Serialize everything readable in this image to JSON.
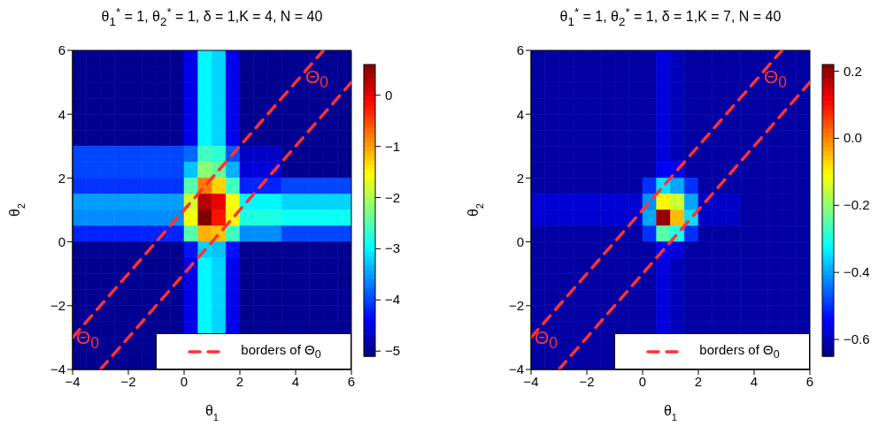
{
  "chart_data": [
    {
      "type": "heatmap",
      "title": "θ$_{1}$$^{*}$ = 1, θ$_{2}$$^{*}$ = 1, δ = 1,K = 4, N = 40",
      "xlabel": "θ$_{1}$",
      "ylabel": "θ$_{2}$",
      "xlim": [
        -4,
        6
      ],
      "xticks": [
        -4,
        -2,
        0,
        2,
        4,
        6
      ],
      "ylim": [
        -4,
        6
      ],
      "yticks": [
        -4,
        -2,
        0,
        2,
        4,
        6
      ],
      "clim": [
        -5.1,
        0.6
      ],
      "cticks": [
        -5,
        -4,
        -3,
        -2,
        -1,
        0
      ],
      "cells": [
        [
          -5,
          -5,
          -5,
          -5,
          -5,
          -5,
          -5,
          -5,
          -4.5,
          -3,
          -3.2,
          -4.5,
          -5,
          -5,
          -5,
          -5,
          -5,
          -5,
          -5,
          -5
        ],
        [
          -5,
          -5,
          -5,
          -5,
          -5,
          -5,
          -5,
          -5,
          -4.5,
          -3,
          -3.2,
          -4.5,
          -5,
          -5,
          -5,
          -5,
          -5,
          -5,
          -5,
          -5
        ],
        [
          -5,
          -5,
          -5,
          -5,
          -5,
          -5,
          -5,
          -5,
          -4.5,
          -3,
          -3.2,
          -4.5,
          -5,
          -5,
          -5,
          -5,
          -5,
          -5,
          -5,
          -5
        ],
        [
          -5,
          -5,
          -5,
          -5,
          -5,
          -5,
          -5,
          -5,
          -4.5,
          -3,
          -3.2,
          -4.5,
          -5,
          -5,
          -5,
          -5,
          -5,
          -5,
          -5,
          -5
        ],
        [
          -5,
          -5,
          -5,
          -5,
          -5,
          -5,
          -5,
          -5,
          -4.5,
          -3,
          -3.2,
          -4.5,
          -5,
          -5,
          -5,
          -5,
          -5,
          -5,
          -5,
          -5
        ],
        [
          -5,
          -5,
          -5,
          -5,
          -5,
          -5,
          -5,
          -5,
          -4.5,
          -3,
          -3.2,
          -4.5,
          -5,
          -5,
          -5,
          -5,
          -5,
          -5,
          -5,
          -5
        ],
        [
          -4,
          -4,
          -4,
          -4,
          -4,
          -4,
          -4,
          -4,
          -3.8,
          -2.6,
          -2.7,
          -3.9,
          -4.7,
          -4.7,
          -4.7,
          -5,
          -5,
          -5,
          -5,
          -5
        ],
        [
          -4,
          -4,
          -4,
          -4,
          -4,
          -4,
          -4,
          -4,
          -3.3,
          -2.2,
          -2.4,
          -3.4,
          -4.6,
          -4.6,
          -4.6,
          -5,
          -5,
          -5,
          -5,
          -5
        ],
        [
          -4.1,
          -4.1,
          -4.1,
          -4.1,
          -4.1,
          -4.1,
          -4.1,
          -4.1,
          -2.5,
          -0.8,
          -1.3,
          -2.6,
          -4.2,
          -4.2,
          -4.2,
          -4,
          -4,
          -4,
          -4,
          -4
        ],
        [
          -3.5,
          -3.5,
          -3.5,
          -3.5,
          -3.5,
          -3.5,
          -3.5,
          -3.5,
          -1.8,
          0.3,
          0,
          -1.6,
          -3,
          -3,
          -3,
          -3.2,
          -3.2,
          -3.2,
          -3.2,
          -3.2
        ],
        [
          -3.6,
          -3.6,
          -3.6,
          -3.6,
          -3.6,
          -3.6,
          -3.6,
          -3.6,
          -1.6,
          0.6,
          -0.2,
          -1.5,
          -2.8,
          -2.8,
          -2.8,
          -2.9,
          -2.9,
          -2.9,
          -2.9,
          -2.9
        ],
        [
          -4.2,
          -4.2,
          -4.2,
          -4.2,
          -4.2,
          -4.2,
          -4.2,
          -4.2,
          -2.5,
          -1.1,
          -1.2,
          -2.6,
          -3.6,
          -3.6,
          -3.6,
          -4,
          -4,
          -4,
          -4,
          -4
        ],
        [
          -5,
          -5,
          -5,
          -5,
          -5,
          -5,
          -5,
          -5,
          -4.3,
          -3.2,
          -3.3,
          -4.3,
          -5,
          -5,
          -5,
          -5,
          -5,
          -5,
          -5,
          -5
        ],
        [
          -5,
          -5,
          -5,
          -5,
          -5,
          -5,
          -5,
          -5,
          -4.5,
          -3,
          -3.2,
          -4.5,
          -5,
          -5,
          -5,
          -5,
          -5,
          -5,
          -5,
          -5
        ],
        [
          -5,
          -5,
          -5,
          -5,
          -5,
          -5,
          -5,
          -5,
          -4.5,
          -3,
          -3.2,
          -4.5,
          -5,
          -5,
          -5,
          -5,
          -5,
          -5,
          -5,
          -5
        ],
        [
          -5,
          -5,
          -5,
          -5,
          -5,
          -5,
          -5,
          -5,
          -4.5,
          -3,
          -3.2,
          -4.5,
          -5,
          -5,
          -5,
          -5,
          -5,
          -5,
          -5,
          -5
        ],
        [
          -5,
          -5,
          -5,
          -5,
          -5,
          -5,
          -5,
          -5,
          -4.5,
          -3,
          -3.2,
          -4.5,
          -5,
          -5,
          -5,
          -5,
          -5,
          -5,
          -5,
          -5
        ],
        [
          -5,
          -5,
          -5,
          -5,
          -5,
          -5,
          -5,
          -5,
          -4.5,
          -3,
          -3.2,
          -4.5,
          -5,
          -5,
          -5,
          -5,
          -5,
          -5,
          -5,
          -5
        ],
        [
          -5,
          -5,
          -5,
          -5,
          -5,
          -5,
          null,
          null,
          null,
          null,
          null,
          null,
          null,
          null,
          null,
          null,
          null,
          null,
          null,
          null
        ],
        [
          -5,
          -5,
          -5,
          -5,
          -5,
          -5,
          null,
          null,
          null,
          null,
          null,
          null,
          null,
          null,
          null,
          null,
          null,
          null,
          null,
          null
        ]
      ],
      "series": [
        {
          "type": "line",
          "name": "borders of Θ$_{0}$",
          "color": "#ff3333",
          "line_style": "dashed",
          "x": [
            -4,
            5
          ],
          "values": [
            -3,
            6
          ]
        },
        {
          "type": "line",
          "color": "#ff3333",
          "line_style": "dashed",
          "x": [
            -3,
            6
          ],
          "values": [
            -4,
            5
          ]
        }
      ],
      "legend": "bottom right",
      "annotations": [
        "Θ$_{0}$",
        "Θ$_{0}$"
      ]
    },
    {
      "type": "heatmap",
      "title": "θ$_{1}$$^{*}$ = 1, θ$_{2}$$^{*}$ = 1, δ = 1,K = 7, N = 40",
      "xlabel": "θ$_{1}$",
      "ylabel": "θ$_{2}$",
      "xlim": [
        -4,
        6
      ],
      "xticks": [
        -4,
        -2,
        0,
        2,
        4,
        6
      ],
      "ylim": [
        -4,
        6
      ],
      "yticks": [
        -4,
        -2,
        0,
        2,
        4,
        6
      ],
      "clim": [
        -0.65,
        0.22
      ],
      "cticks": [
        -0.6,
        -0.4,
        -0.2,
        {
          "value": 0,
          "label": "0.0"
        },
        0.2
      ],
      "cells": [
        [
          -0.62,
          -0.62,
          -0.62,
          -0.62,
          -0.62,
          -0.62,
          -0.62,
          -0.62,
          -0.62,
          -0.57,
          -0.6,
          -0.62,
          -0.62,
          -0.62,
          -0.62,
          -0.62,
          -0.62,
          -0.62,
          -0.62,
          -0.62
        ],
        [
          -0.62,
          -0.62,
          -0.62,
          -0.62,
          -0.62,
          -0.62,
          -0.62,
          -0.62,
          -0.62,
          -0.57,
          -0.6,
          -0.62,
          -0.62,
          -0.62,
          -0.62,
          -0.62,
          -0.62,
          -0.62,
          -0.62,
          -0.62
        ],
        [
          -0.62,
          -0.62,
          -0.62,
          -0.62,
          -0.62,
          -0.62,
          -0.62,
          -0.62,
          -0.62,
          -0.57,
          -0.6,
          -0.62,
          -0.62,
          -0.62,
          -0.62,
          -0.62,
          -0.62,
          -0.62,
          -0.62,
          -0.62
        ],
        [
          -0.62,
          -0.62,
          -0.62,
          -0.62,
          -0.62,
          -0.62,
          -0.62,
          -0.62,
          -0.62,
          -0.57,
          -0.6,
          -0.62,
          -0.62,
          -0.62,
          -0.62,
          -0.62,
          -0.62,
          -0.62,
          -0.62,
          -0.62
        ],
        [
          -0.62,
          -0.62,
          -0.62,
          -0.62,
          -0.62,
          -0.62,
          -0.62,
          -0.62,
          -0.62,
          -0.57,
          -0.6,
          -0.62,
          -0.62,
          -0.62,
          -0.62,
          -0.62,
          -0.62,
          -0.62,
          -0.62,
          -0.62
        ],
        [
          -0.62,
          -0.62,
          -0.62,
          -0.62,
          -0.62,
          -0.62,
          -0.62,
          -0.62,
          -0.62,
          -0.57,
          -0.6,
          -0.62,
          -0.62,
          -0.62,
          -0.62,
          -0.62,
          -0.62,
          -0.62,
          -0.62,
          -0.62
        ],
        [
          -0.62,
          -0.62,
          -0.62,
          -0.62,
          -0.62,
          -0.62,
          -0.62,
          -0.62,
          -0.62,
          -0.57,
          -0.6,
          -0.62,
          -0.62,
          -0.62,
          -0.62,
          -0.62,
          -0.62,
          -0.62,
          -0.62,
          -0.62
        ],
        [
          -0.62,
          -0.62,
          -0.62,
          -0.62,
          -0.62,
          -0.62,
          -0.62,
          -0.62,
          -0.62,
          -0.55,
          -0.55,
          -0.62,
          -0.62,
          -0.62,
          -0.62,
          -0.62,
          -0.62,
          -0.62,
          -0.62,
          -0.62
        ],
        [
          -0.62,
          -0.62,
          -0.62,
          -0.62,
          -0.62,
          -0.62,
          -0.62,
          -0.62,
          -0.5,
          -0.35,
          -0.4,
          -0.5,
          -0.62,
          -0.62,
          -0.62,
          -0.62,
          -0.62,
          -0.62,
          -0.62,
          -0.62
        ],
        [
          -0.58,
          -0.58,
          -0.58,
          -0.58,
          -0.58,
          -0.58,
          -0.58,
          -0.58,
          -0.42,
          -0.1,
          -0.15,
          -0.4,
          -0.59,
          -0.59,
          -0.59,
          -0.62,
          -0.62,
          -0.62,
          -0.62,
          -0.62
        ],
        [
          -0.58,
          -0.58,
          -0.58,
          -0.58,
          -0.58,
          -0.58,
          -0.58,
          -0.58,
          -0.4,
          0.2,
          -0.05,
          -0.35,
          -0.59,
          -0.59,
          -0.59,
          -0.62,
          -0.62,
          -0.62,
          -0.62,
          -0.62
        ],
        [
          -0.62,
          -0.62,
          -0.62,
          -0.62,
          -0.62,
          -0.62,
          -0.62,
          -0.62,
          -0.5,
          -0.25,
          -0.3,
          -0.5,
          -0.62,
          -0.62,
          -0.62,
          -0.62,
          -0.62,
          -0.62,
          -0.62,
          -0.62
        ],
        [
          -0.62,
          -0.62,
          -0.62,
          -0.62,
          -0.62,
          -0.62,
          -0.62,
          -0.62,
          -0.62,
          -0.55,
          -0.57,
          -0.62,
          -0.62,
          -0.62,
          -0.62,
          -0.62,
          -0.62,
          -0.62,
          -0.62,
          -0.62
        ],
        [
          -0.62,
          -0.62,
          -0.62,
          -0.62,
          -0.62,
          -0.62,
          -0.62,
          -0.62,
          -0.62,
          -0.57,
          -0.6,
          -0.62,
          -0.62,
          -0.62,
          -0.62,
          -0.62,
          -0.62,
          -0.62,
          -0.62,
          -0.62
        ],
        [
          -0.62,
          -0.62,
          -0.62,
          -0.62,
          -0.62,
          -0.62,
          -0.62,
          -0.62,
          -0.62,
          -0.57,
          -0.6,
          -0.62,
          -0.62,
          -0.62,
          -0.62,
          -0.62,
          -0.62,
          -0.62,
          -0.62,
          -0.62
        ],
        [
          -0.62,
          -0.62,
          -0.62,
          -0.62,
          -0.62,
          -0.62,
          -0.62,
          -0.62,
          -0.62,
          -0.57,
          -0.6,
          -0.62,
          -0.62,
          -0.62,
          -0.62,
          -0.62,
          -0.62,
          -0.62,
          -0.62,
          -0.62
        ],
        [
          -0.62,
          -0.62,
          -0.62,
          -0.62,
          -0.62,
          -0.62,
          -0.62,
          -0.62,
          -0.62,
          -0.57,
          -0.6,
          -0.62,
          -0.62,
          -0.62,
          -0.62,
          -0.62,
          -0.62,
          -0.62,
          -0.62,
          -0.62
        ],
        [
          -0.62,
          -0.62,
          -0.62,
          -0.62,
          -0.62,
          -0.62,
          -0.62,
          -0.62,
          -0.62,
          -0.57,
          -0.6,
          -0.62,
          -0.62,
          -0.62,
          -0.62,
          -0.62,
          -0.62,
          -0.62,
          -0.62,
          -0.62
        ],
        [
          -0.62,
          -0.62,
          -0.62,
          -0.62,
          -0.62,
          -0.62,
          null,
          null,
          null,
          null,
          null,
          null,
          null,
          null,
          null,
          null,
          null,
          null,
          null,
          null
        ],
        [
          -0.62,
          -0.62,
          -0.62,
          -0.62,
          -0.62,
          -0.62,
          null,
          null,
          null,
          null,
          null,
          null,
          null,
          null,
          null,
          null,
          null,
          null,
          null,
          null
        ]
      ],
      "series": [
        {
          "type": "line",
          "name": "borders of Θ$_{0}$",
          "color": "#ff3333",
          "line_style": "dashed",
          "x": [
            -4,
            5
          ],
          "values": [
            -3,
            6
          ]
        },
        {
          "type": "line",
          "color": "#ff3333",
          "line_style": "dashed",
          "x": [
            -3,
            6
          ],
          "values": [
            -4,
            5
          ]
        }
      ],
      "legend": "bottom right",
      "annotations": [
        "Θ$_{0}$",
        "Θ$_{0}$"
      ]
    }
  ]
}
